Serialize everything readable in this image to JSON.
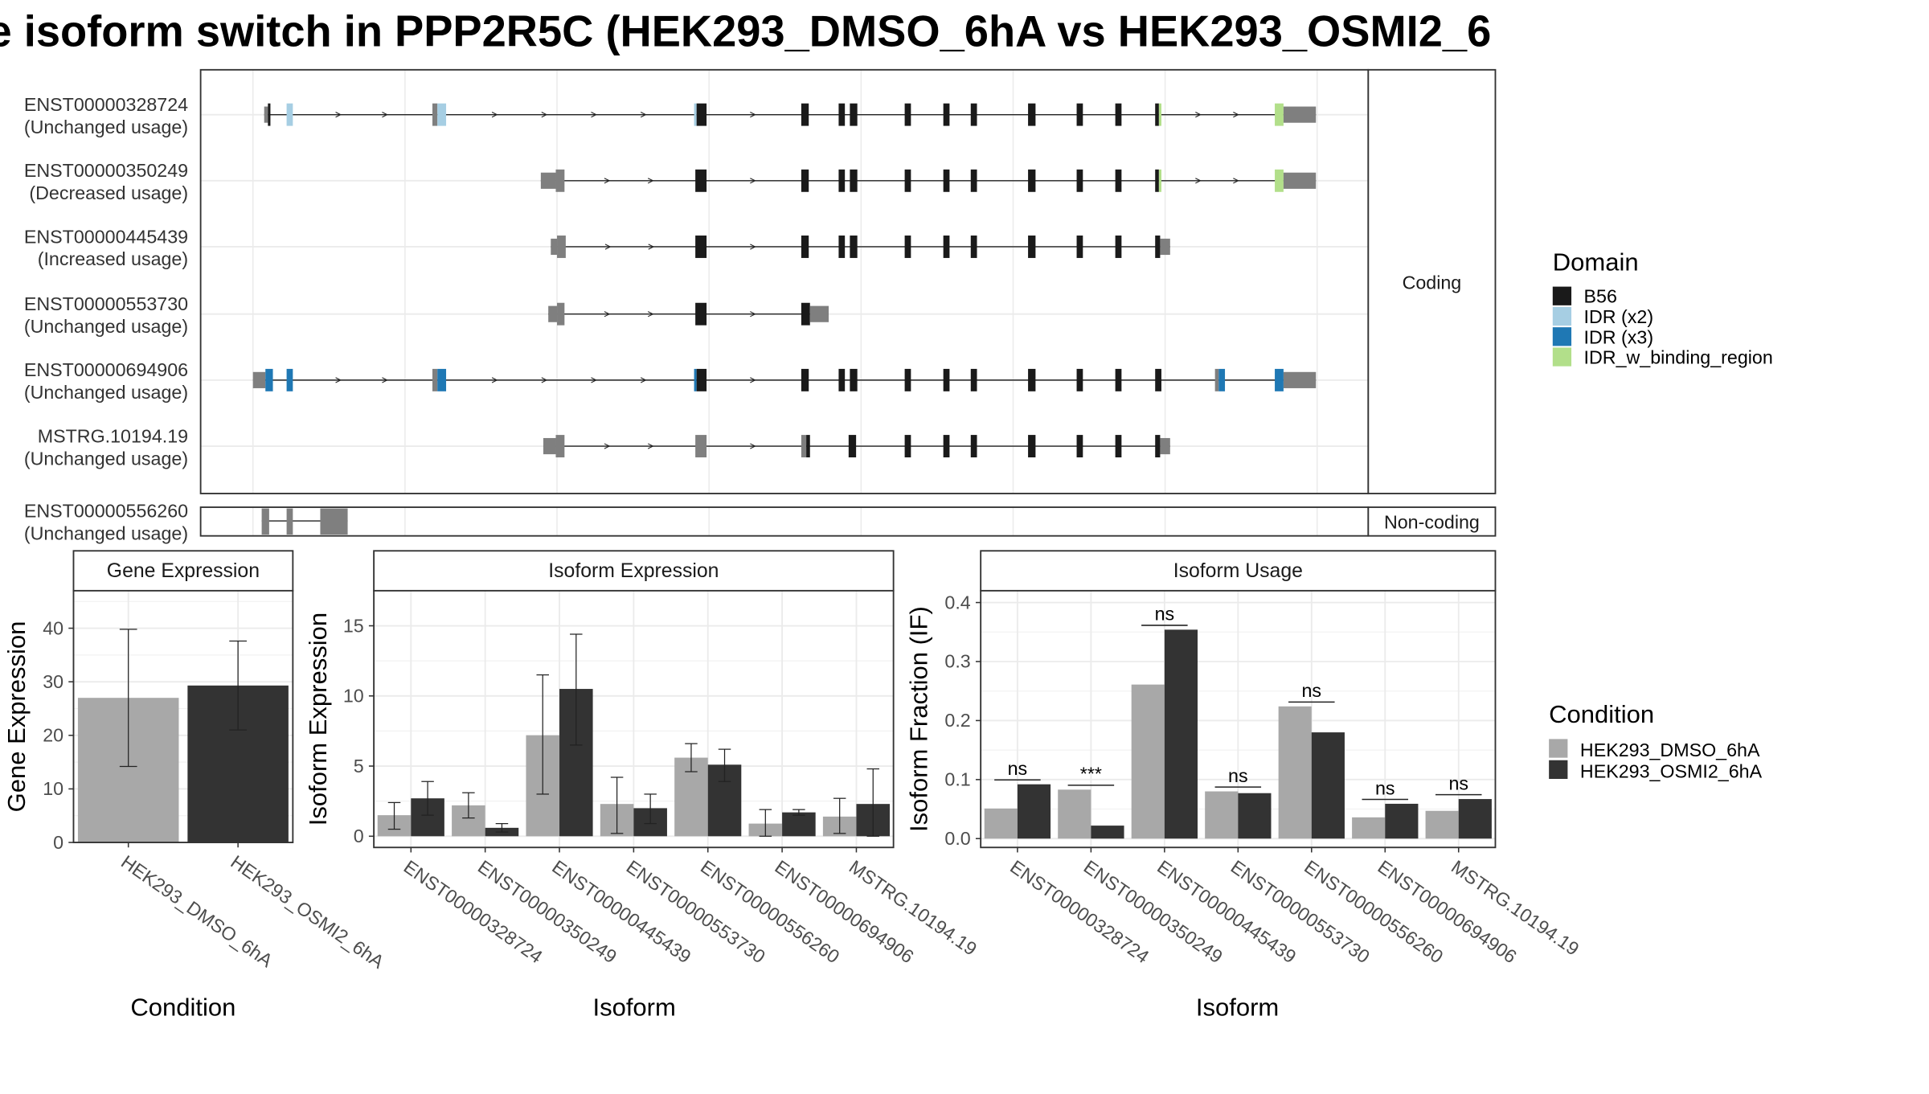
{
  "title": "e isoform switch in PPP2R5C (HEK293_DMSO_6hA vs HEK293_OSMI2_6",
  "colors": {
    "b56": "#1a1a1a",
    "idr_x2": "#a6cee3",
    "idr_x3": "#1f78b4",
    "idr_binding": "#b2df8a",
    "exon_grey": "#7f7f7f",
    "dmso": "#a8a8a8",
    "osmi2": "#333333"
  },
  "structure": {
    "coding_strip": "Coding",
    "noncoding_strip": "Non-coding",
    "coding_isoforms": [
      {
        "id": "ENST00000328724",
        "usage": "(Unchanged usage)"
      },
      {
        "id": "ENST00000350249",
        "usage": "(Decreased usage)"
      },
      {
        "id": "ENST00000445439",
        "usage": "(Increased usage)"
      },
      {
        "id": "ENST00000553730",
        "usage": "(Unchanged usage)"
      },
      {
        "id": "ENST00000694906",
        "usage": "(Unchanged usage)"
      },
      {
        "id": "MSTRG.10194.19",
        "usage": "(Unchanged usage)"
      }
    ],
    "noncoding_isoforms": [
      {
        "id": "ENST00000556260",
        "usage": "(Unchanged usage)"
      }
    ]
  },
  "legend_domain": {
    "title": "Domain",
    "items": [
      {
        "label": "B56",
        "color": "#1a1a1a"
      },
      {
        "label": "IDR (x2)",
        "color": "#a6cee3"
      },
      {
        "label": "IDR (x3)",
        "color": "#1f78b4"
      },
      {
        "label": "IDR_w_binding_region",
        "color": "#b2df8a"
      }
    ]
  },
  "legend_condition": {
    "title": "Condition",
    "items": [
      {
        "label": "HEK293_DMSO_6hA",
        "color": "#a8a8a8"
      },
      {
        "label": "HEK293_OSMI2_6hA",
        "color": "#333333"
      }
    ]
  },
  "chart_data": [
    {
      "type": "bar",
      "title": "Gene Expression",
      "xlabel": "Condition",
      "ylabel": "Gene Expression",
      "ylim": [
        0,
        47
      ],
      "yticks": [
        "0",
        "10",
        "20",
        "30",
        "40"
      ],
      "categories": [
        "HEK293_DMSO_6hA",
        "HEK293_OSMI2_6hA"
      ],
      "values": [
        27.0,
        29.3
      ],
      "errors": [
        [
          14.2,
          39.8
        ],
        [
          21.0,
          37.6
        ]
      ]
    },
    {
      "type": "bar",
      "title": "Isoform Expression",
      "xlabel": "Isoform",
      "ylabel": "Isoform Expression",
      "ylim": [
        -0.8,
        17.5
      ],
      "yticks": [
        "0",
        "5",
        "10",
        "15"
      ],
      "categories": [
        "ENST00000328724",
        "ENST00000350249",
        "ENST00000445439",
        "ENST00000553730",
        "ENST00000556260",
        "ENST00000694906",
        "MSTRG.10194.19"
      ],
      "series": [
        {
          "name": "HEK293_DMSO_6hA",
          "values": [
            1.5,
            2.2,
            7.2,
            2.3,
            5.6,
            0.9,
            1.4
          ],
          "errors": [
            [
              0.5,
              2.4
            ],
            [
              1.3,
              3.1
            ],
            [
              3.0,
              11.5
            ],
            [
              0.2,
              4.2
            ],
            [
              4.6,
              6.6
            ],
            [
              0.0,
              1.9
            ],
            [
              0.2,
              2.7
            ]
          ]
        },
        {
          "name": "HEK293_OSMI2_6hA",
          "values": [
            2.7,
            0.6,
            10.5,
            2.0,
            5.1,
            1.7,
            2.3
          ],
          "errors": [
            [
              1.5,
              3.9
            ],
            [
              0.3,
              0.9
            ],
            [
              6.5,
              14.4
            ],
            [
              0.9,
              3.0
            ],
            [
              3.9,
              6.2
            ],
            [
              1.5,
              1.9
            ],
            [
              0.0,
              4.8
            ]
          ]
        }
      ]
    },
    {
      "type": "bar",
      "title": "Isoform Usage",
      "xlabel": "Isoform",
      "ylabel": "Isoform Fraction (IF)",
      "ylim": [
        -0.015,
        0.42
      ],
      "yticks": [
        "0.0",
        "0.1",
        "0.2",
        "0.3",
        "0.4"
      ],
      "categories": [
        "ENST00000328724",
        "ENST00000350249",
        "ENST00000445439",
        "ENST00000553730",
        "ENST00000556260",
        "ENST00000694906",
        "MSTRG.10194.19"
      ],
      "series": [
        {
          "name": "HEK293_DMSO_6hA",
          "values": [
            0.051,
            0.083,
            0.261,
            0.08,
            0.224,
            0.036,
            0.047
          ]
        },
        {
          "name": "HEK293_OSMI2_6hA",
          "values": [
            0.092,
            0.022,
            0.354,
            0.077,
            0.18,
            0.059,
            0.067
          ]
        }
      ],
      "significance": [
        "ns",
        "***",
        "ns",
        "ns",
        "ns",
        "ns",
        "ns"
      ]
    }
  ]
}
